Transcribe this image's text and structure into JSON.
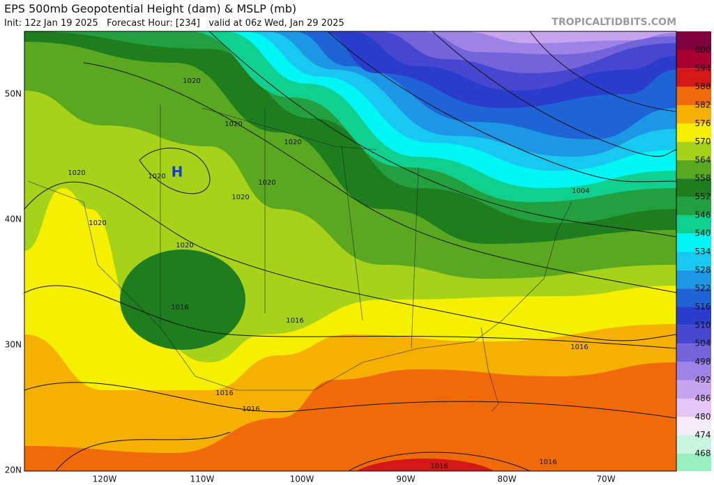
{
  "header": {
    "title": "EPS 500mb Geopotential Height (dam) & MSLP (mb)",
    "subtitle": "Init: 12z Jan 19 2025   Forecast Hour: [234]   valid at 06z Wed, Jan 29 2025",
    "watermark": "TROPICALTIDBITS.COM"
  },
  "map": {
    "latitude_labels": [
      "50N",
      "40N",
      "30N",
      "20N"
    ],
    "longitude_labels": [
      "120W",
      "110W",
      "100W",
      "90W",
      "80W",
      "70W"
    ],
    "pressure_center": "H",
    "contour_labels": [
      "1020",
      "1020",
      "1020",
      "1020",
      "1020",
      "1020",
      "1020",
      "1020",
      "1020",
      "1016",
      "1016",
      "1016",
      "1016",
      "1016",
      "1016",
      "1016",
      "1004"
    ]
  },
  "colorbar": {
    "levels": [
      600,
      594,
      588,
      582,
      576,
      570,
      564,
      558,
      552,
      546,
      540,
      534,
      528,
      522,
      516,
      510,
      504,
      498,
      492,
      486,
      480,
      474,
      468
    ],
    "colors": [
      "#800040",
      "#a80030",
      "#d41818",
      "#f06a0a",
      "#f5b000",
      "#f5f000",
      "#a6d21a",
      "#5aa820",
      "#1e7d1e",
      "#22a040",
      "#10d090",
      "#00f5f5",
      "#18c8f0",
      "#1e96e6",
      "#1e64d6",
      "#2a3ccc",
      "#4646d0",
      "#7464dc",
      "#9e82e6",
      "#c8a4f0",
      "#e6c6f6",
      "#f4ecf8",
      "#c8f4e0",
      "#98f0c0"
    ]
  }
}
